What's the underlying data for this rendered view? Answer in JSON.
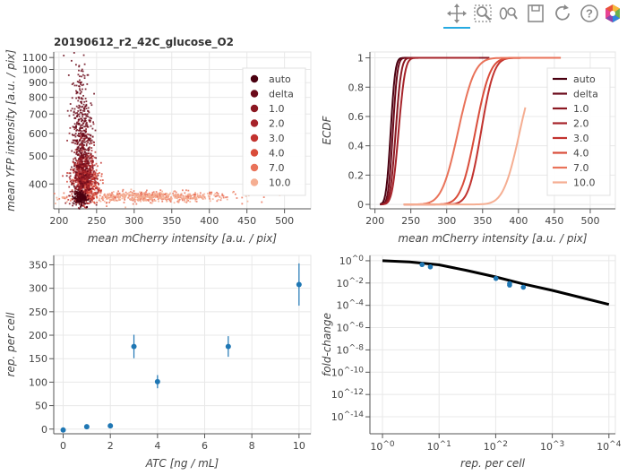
{
  "toolbar": {
    "tools": [
      {
        "name": "pan-tool-icon",
        "active": true
      },
      {
        "name": "box-zoom-tool-icon",
        "active": false
      },
      {
        "name": "wheel-zoom-tool-icon",
        "active": false
      },
      {
        "name": "save-tool-icon",
        "active": false
      },
      {
        "name": "reset-tool-icon",
        "active": false
      },
      {
        "name": "help-tool-icon",
        "active": false
      },
      {
        "name": "bokeh-logo-icon",
        "active": false
      }
    ]
  },
  "chart_data": [
    {
      "id": "scatter",
      "type": "scatter",
      "title": "20190612_r2_42C_glucose_O2",
      "xlabel": "mean mCherry intensity [a.u. / pix]",
      "ylabel": "mean YFP intensity [a.u. / pix]",
      "xlim": [
        193,
        535
      ],
      "ylim": [
        328,
        1150
      ],
      "ylog": true,
      "grid": true,
      "x_ticks": [
        "200",
        "250",
        "300",
        "350",
        "400",
        "450",
        "500"
      ],
      "y_ticks": [
        "400",
        "500",
        "600",
        "700",
        "800",
        "900",
        "1000",
        "1100"
      ],
      "legend_position": "top-right",
      "series": [
        {
          "name": "auto",
          "color": "#4a0010",
          "cx": 228,
          "sx": 4,
          "cy": 358,
          "sy": 10,
          "n": 160
        },
        {
          "name": "delta",
          "color": "#6b0a1a",
          "cx": 230,
          "sx": 7,
          "cy": 620,
          "sy": 0.28,
          "n": 380
        },
        {
          "name": "1.0",
          "color": "#8b1822",
          "cx": 232,
          "sx": 7,
          "cy": 450,
          "sy": 0.18,
          "n": 260
        },
        {
          "name": "2.0",
          "color": "#a6232a",
          "cx": 232,
          "sx": 7,
          "cy": 420,
          "sy": 0.12,
          "n": 260
        },
        {
          "name": "3.0",
          "color": "#c2332f",
          "cx": 235,
          "sx": 8,
          "cy": 420,
          "sy": 0.1,
          "n": 260
        },
        {
          "name": "4.0",
          "color": "#d94c3a",
          "cx": 237,
          "sx": 9,
          "cy": 400,
          "sy": 0.08,
          "n": 240
        },
        {
          "name": "7.0",
          "color": "#e9735a",
          "cx": 320,
          "sx": 55,
          "cy": 362,
          "sy": 8,
          "n": 320
        },
        {
          "name": "10.0",
          "color": "#f5ae92",
          "cx": 320,
          "sx": 55,
          "cy": 360,
          "sy": 7,
          "n": 320
        }
      ]
    },
    {
      "id": "ecdf",
      "type": "line",
      "title": "",
      "xlabel": "mean mCherry intensity [a.u. / pix]",
      "ylabel": "ECDF",
      "xlim": [
        193,
        535
      ],
      "ylim": [
        -0.03,
        1.04
      ],
      "grid": true,
      "x_ticks": [
        "200",
        "250",
        "300",
        "350",
        "400",
        "450",
        "500"
      ],
      "y_ticks": [
        "0",
        "0.2",
        "0.4",
        "0.6",
        "0.8",
        "1"
      ],
      "legend_position": "top-right",
      "series": [
        {
          "name": "auto",
          "color": "#4a0010",
          "mu": 222,
          "s": 5,
          "start": 207,
          "end": 290
        },
        {
          "name": "delta",
          "color": "#6b0a1a",
          "mu": 225,
          "s": 5,
          "start": 207,
          "end": 300
        },
        {
          "name": "1.0",
          "color": "#8b1822",
          "mu": 229,
          "s": 6,
          "start": 208,
          "end": 360
        },
        {
          "name": "2.0",
          "color": "#a6232a",
          "mu": 233,
          "s": 7,
          "start": 210,
          "end": 345
        },
        {
          "name": "3.0",
          "color": "#c2332f",
          "mu": 348,
          "s": 14,
          "start": 240,
          "end": 410
        },
        {
          "name": "4.0",
          "color": "#d94c3a",
          "mu": 340,
          "s": 16,
          "start": 240,
          "end": 430
        },
        {
          "name": "7.0",
          "color": "#e9735a",
          "mu": 316,
          "s": 18,
          "start": 240,
          "end": 460
        },
        {
          "name": "10.0",
          "color": "#f5ae92",
          "mu": 402,
          "s": 18,
          "start": 240,
          "end": 410
        }
      ]
    },
    {
      "id": "reps",
      "type": "scatter",
      "title": "",
      "xlabel": "ATC [ng / mL]",
      "ylabel": "rep. per cell",
      "xlim": [
        -0.4,
        10.5
      ],
      "ylim": [
        -10,
        370
      ],
      "grid": true,
      "x_ticks": [
        "0",
        "2",
        "4",
        "6",
        "8",
        "10"
      ],
      "y_ticks": [
        "0",
        "50",
        "100",
        "150",
        "200",
        "250",
        "300",
        "350"
      ],
      "color": "#1f77b4",
      "points": [
        {
          "x": 0,
          "y": -2,
          "err": 2
        },
        {
          "x": 1,
          "y": 5,
          "err": 2
        },
        {
          "x": 2,
          "y": 7,
          "err": 3
        },
        {
          "x": 3,
          "y": 176,
          "err": 25
        },
        {
          "x": 4,
          "y": 101,
          "err": 14
        },
        {
          "x": 7,
          "y": 176,
          "err": 22
        },
        {
          "x": 10,
          "y": 308,
          "err": 45
        }
      ]
    },
    {
      "id": "fold",
      "type": "line",
      "title": "",
      "xlabel": "rep. per cell",
      "ylabel": "fold-change",
      "xlog": true,
      "ylog": true,
      "xlim": [
        0.6,
        13000
      ],
      "ylim": [
        3e-16,
        3
      ],
      "grid": true,
      "x_ticks": [
        "10^0",
        "10^1",
        "10^2",
        "10^3",
        "10^4"
      ],
      "y_ticks": [
        "10^0",
        "10^-2",
        "10^-4",
        "10^-6",
        "10^-8",
        "10^-10",
        "10^-12",
        "10^-14"
      ],
      "theory_color": "#000000",
      "point_color": "#1f77b4",
      "theory": [
        [
          1,
          1
        ],
        [
          3,
          0.78
        ],
        [
          10,
          0.43
        ],
        [
          30,
          0.14
        ],
        [
          100,
          0.035
        ],
        [
          300,
          0.0085
        ],
        [
          1000,
          0.0022
        ],
        [
          3000,
          0.00055
        ],
        [
          10000,
          0.00012
        ]
      ],
      "points": [
        {
          "x": 5,
          "y": 0.45
        },
        {
          "x": 7,
          "y": 0.28
        },
        {
          "x": 101,
          "y": 0.026
        },
        {
          "x": 176,
          "y": 0.009
        },
        {
          "x": 176,
          "y": 0.0065
        },
        {
          "x": 308,
          "y": 0.0042
        }
      ]
    }
  ]
}
